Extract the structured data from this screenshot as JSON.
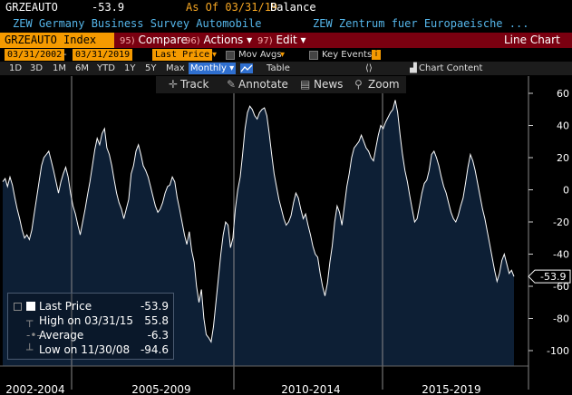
{
  "header": {
    "ticker": "GRZEAUTO",
    "value": "-53.9",
    "as_of": "As Of 03/31/19",
    "field": "Balance"
  },
  "subheader": {
    "desc_left": "ZEW Germany Business Survey Automobile",
    "desc_right": "ZEW Zentrum fuer Europaeische ..."
  },
  "menubar": {
    "index": "GRZEAUTO Index",
    "compare_num": "95)",
    "compare": "Compare",
    "actions_num": "96)",
    "actions": "Actions ▾",
    "edit_num": "97)",
    "edit": "Edit ▾",
    "chart_type": "Line Chart"
  },
  "options": {
    "start_date": "03/31/2002",
    "dash": "-",
    "end_date": "03/31/2019",
    "price_type": "Last Price",
    "mov_avgs": "Mov Avgs",
    "key_events": "Key Events"
  },
  "periods": {
    "items": [
      "1D",
      "3D",
      "1M",
      "6M",
      "YTD",
      "1Y",
      "5Y",
      "Max"
    ],
    "frequency": "Monthly ▾",
    "table": "Table",
    "chart_content": "Chart Content"
  },
  "toolbar": {
    "track": "Track",
    "annotate": "Annotate",
    "news": "News",
    "zoom": "Zoom"
  },
  "legend": {
    "last_label": "Last Price",
    "last_value": "-53.9",
    "high_label": "High on 03/31/15",
    "high_value": "55.8",
    "avg_label": "Average",
    "avg_value": "-6.3",
    "low_label": "Low on 11/30/08",
    "low_value": "-94.6"
  },
  "colors": {
    "accent_orange": "#f59a00",
    "menubar_red": "#7a0010",
    "text_blue": "#55b6ea",
    "area_fill": "#0d1f35",
    "line": "#ffffff"
  },
  "chart_data": {
    "type": "area",
    "ylim": [
      -110,
      65
    ],
    "yticks": [
      60,
      40,
      20,
      0,
      -20,
      -40,
      -60,
      -80,
      -100
    ],
    "x_sections": [
      "2002-2004",
      "2005-2009",
      "2010-2014",
      "2015-2019"
    ],
    "last_value_label": "-53.9",
    "series": [
      {
        "x_start": "2002-03",
        "values": [
          5,
          7,
          2,
          8,
          3,
          -5,
          -12,
          -18,
          -25,
          -30,
          -28,
          -31,
          -25,
          -15,
          -5,
          5,
          15,
          20,
          22,
          24,
          18,
          12,
          5,
          -2,
          5,
          10,
          14,
          8,
          -2,
          -10,
          -15,
          -22,
          -28,
          -20,
          -12,
          -3,
          5,
          15,
          25,
          32,
          28,
          35,
          38,
          26,
          22,
          15,
          6,
          -2,
          -8,
          -12,
          -18,
          -12,
          -6,
          10,
          15,
          24,
          28,
          22,
          15,
          12,
          8,
          2,
          -4,
          -10,
          -14,
          -12,
          -8,
          -2,
          2,
          3,
          8,
          5,
          -5,
          -12,
          -20,
          -28,
          -34,
          -26,
          -38,
          -45,
          -60,
          -70,
          -62,
          -80,
          -90,
          -92,
          -94.6,
          -85,
          -70,
          -55,
          -40,
          -28,
          -20,
          -22,
          -36,
          -30,
          -12,
          0,
          8,
          22,
          38,
          48,
          52,
          50,
          46,
          44,
          48,
          50,
          51,
          46,
          35,
          22,
          10,
          2,
          -6,
          -12,
          -18,
          -22,
          -20,
          -16,
          -8,
          -2,
          -5,
          -12,
          -18,
          -15,
          -22,
          -28,
          -35,
          -40,
          -42,
          -52,
          -60,
          -66,
          -58,
          -45,
          -35,
          -20,
          -10,
          -14,
          -22,
          -10,
          2,
          10,
          20,
          26,
          28,
          30,
          34,
          30,
          26,
          24,
          20,
          18,
          26,
          34,
          40,
          38,
          42,
          45,
          48,
          50,
          55.8,
          48,
          34,
          22,
          12,
          5,
          -4,
          -12,
          -20,
          -18,
          -10,
          -2,
          4,
          6,
          12,
          22,
          24,
          20,
          15,
          8,
          2,
          -2,
          -8,
          -14,
          -18,
          -20,
          -16,
          -10,
          -5,
          4,
          14,
          22,
          18,
          12,
          4,
          -4,
          -12,
          -18,
          -26,
          -34,
          -42,
          -50,
          -57,
          -52,
          -44,
          -40,
          -46,
          -52,
          -50,
          -53.9
        ]
      }
    ]
  }
}
